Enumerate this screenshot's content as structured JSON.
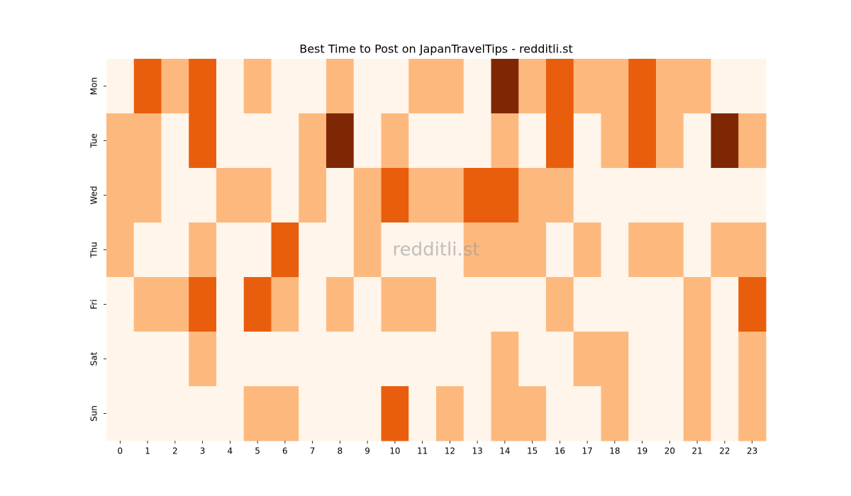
{
  "chart_data": {
    "type": "heatmap",
    "title": "Best Time to Post on JapanTravelTips - redditli.st",
    "watermark": "redditli.st",
    "x_categories": [
      "0",
      "1",
      "2",
      "3",
      "4",
      "5",
      "6",
      "7",
      "8",
      "9",
      "10",
      "11",
      "12",
      "13",
      "14",
      "15",
      "16",
      "17",
      "18",
      "19",
      "20",
      "21",
      "22",
      "23"
    ],
    "y_categories": [
      "Mon",
      "Tue",
      "Wed",
      "Thu",
      "Fri",
      "Sat",
      "Sun"
    ],
    "colors": [
      "#fff5eb",
      "#fdb97d",
      "#e95e0d",
      "#7f2704"
    ],
    "values": [
      [
        0,
        2,
        1,
        2,
        0,
        1,
        0,
        0,
        1,
        0,
        0,
        1,
        1,
        0,
        3,
        1,
        2,
        1,
        1,
        2,
        1,
        1,
        0,
        0
      ],
      [
        1,
        1,
        0,
        2,
        0,
        0,
        0,
        1,
        3,
        0,
        1,
        0,
        0,
        0,
        1,
        0,
        2,
        0,
        1,
        2,
        1,
        0,
        3,
        1
      ],
      [
        1,
        1,
        0,
        0,
        1,
        1,
        0,
        1,
        0,
        1,
        2,
        1,
        1,
        2,
        2,
        1,
        1,
        0,
        0,
        0,
        0,
        0,
        0,
        0
      ],
      [
        1,
        0,
        0,
        1,
        0,
        0,
        2,
        0,
        0,
        1,
        0,
        0,
        0,
        1,
        1,
        1,
        0,
        1,
        0,
        1,
        1,
        0,
        1,
        1
      ],
      [
        0,
        1,
        1,
        2,
        0,
        2,
        1,
        0,
        1,
        0,
        1,
        1,
        0,
        0,
        0,
        0,
        1,
        0,
        0,
        0,
        0,
        1,
        0,
        2
      ],
      [
        0,
        0,
        0,
        1,
        0,
        0,
        0,
        0,
        0,
        0,
        0,
        0,
        0,
        0,
        1,
        0,
        0,
        1,
        1,
        0,
        0,
        1,
        0,
        1
      ],
      [
        0,
        0,
        0,
        0,
        0,
        1,
        1,
        0,
        0,
        0,
        2,
        0,
        1,
        0,
        1,
        1,
        0,
        0,
        1,
        0,
        0,
        1,
        0,
        1
      ]
    ]
  }
}
